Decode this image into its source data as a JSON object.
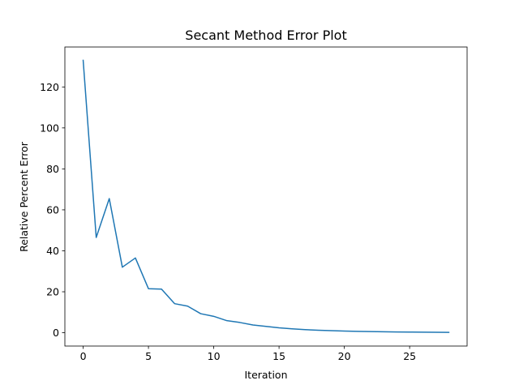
{
  "chart_data": {
    "type": "line",
    "title": "Secant Method Error Plot",
    "xlabel": "Iteration",
    "ylabel": "Relative Percent Error",
    "xlim": [
      -1.4,
      29.4
    ],
    "ylim": [
      -6.5,
      139.5
    ],
    "xticks": [
      0,
      5,
      10,
      15,
      20,
      25
    ],
    "yticks": [
      0,
      20,
      40,
      60,
      80,
      100,
      120
    ],
    "grid": false,
    "legend": "none",
    "series": [
      {
        "color": "#1f77b4",
        "x": [
          0,
          1,
          2,
          3,
          4,
          5,
          6,
          7,
          8,
          9,
          10,
          11,
          12,
          13,
          14,
          15,
          16,
          17,
          18,
          19,
          20,
          21,
          22,
          23,
          24,
          25,
          26,
          27,
          28
        ],
        "values": [
          133,
          46.5,
          65.5,
          32,
          36.5,
          21.5,
          21.3,
          14.2,
          13,
          9.3,
          8,
          5.9,
          5,
          3.8,
          3.1,
          2.4,
          1.9,
          1.5,
          1.2,
          1.0,
          0.8,
          0.65,
          0.55,
          0.45,
          0.38,
          0.32,
          0.27,
          0.22,
          0.18
        ]
      }
    ]
  }
}
